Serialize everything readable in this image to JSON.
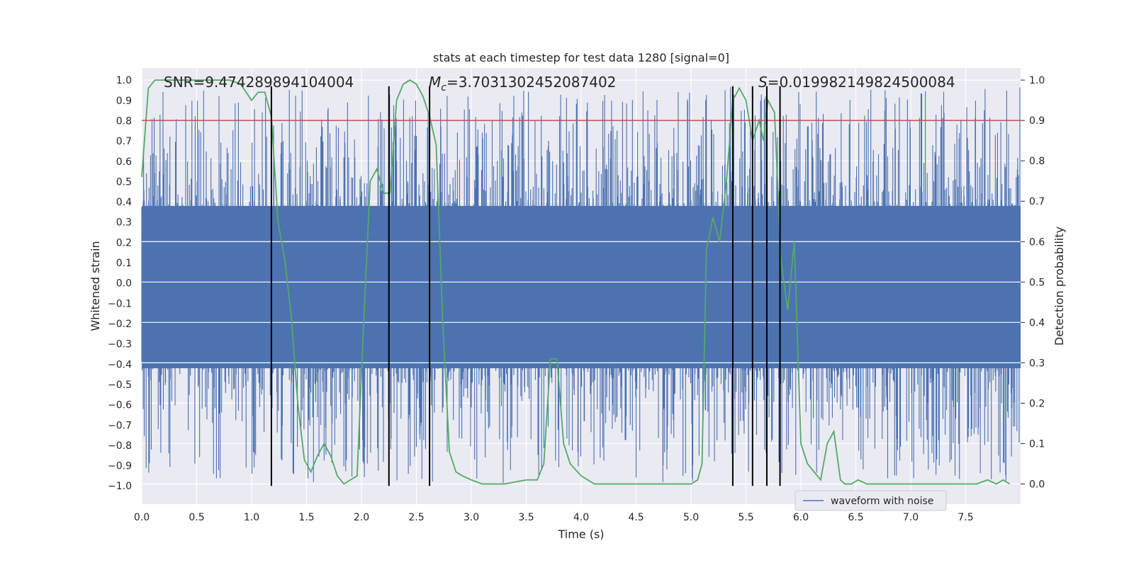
{
  "chart_data": {
    "type": "line",
    "title": "stats at each timestep for test data 1280 [signal=0]",
    "xlabel": "Time (s)",
    "ylabel_left": "Whitened strain",
    "ylabel_right": "Detection probability",
    "xlim": [
      0.0,
      8.0
    ],
    "ylim_left": [
      -1.09,
      1.06
    ],
    "ylim_right": [
      -0.05,
      1.03
    ],
    "x_ticks": [
      "0.0",
      "0.5",
      "1.0",
      "1.5",
      "2.0",
      "2.5",
      "3.0",
      "3.5",
      "4.0",
      "4.5",
      "5.0",
      "5.5",
      "6.0",
      "6.5",
      "7.0",
      "7.5"
    ],
    "y_ticks_left": [
      "1.0",
      "0.9",
      "0.8",
      "0.7",
      "0.6",
      "0.5",
      "0.4",
      "0.3",
      "0.2",
      "0.1",
      "0.0",
      "-0.1",
      "-0.2",
      "-0.3",
      "-0.4",
      "-0.5",
      "-0.6",
      "-0.7",
      "-0.8",
      "-0.9",
      "-1.0"
    ],
    "y_ticks_right": [
      "1.0",
      "0.9",
      "0.8",
      "0.7",
      "0.6",
      "0.5",
      "0.4",
      "0.3",
      "0.2",
      "0.1",
      "0.0"
    ],
    "grid": true,
    "legend_position": "bottom-right",
    "annotations": {
      "snr": "SNR=9.474289894104004",
      "mc_symbol": "M",
      "mc_sub": "c",
      "mc_value": "=3.7031302452087402",
      "s_symbol": "S",
      "s_value": "=0.019982149824500084"
    },
    "series": [
      {
        "name": "waveform with noise",
        "color": "#4c72b0",
        "axis": "left",
        "noise_envelope": {
          "dense_min": -0.42,
          "dense_max": 0.38,
          "spike_min": -1.0,
          "spike_max": 0.97
        }
      },
      {
        "color": "#55a868",
        "axis": "right",
        "x": [
          0.0,
          0.06,
          0.12,
          0.2,
          0.3,
          0.4,
          0.5,
          0.6,
          0.7,
          0.8,
          0.9,
          0.95,
          1.0,
          1.06,
          1.12,
          1.18,
          1.24,
          1.3,
          1.36,
          1.42,
          1.48,
          1.54,
          1.6,
          1.66,
          1.72,
          1.78,
          1.84,
          1.9,
          1.96,
          2.02,
          2.08,
          2.14,
          2.2,
          2.26,
          2.32,
          2.38,
          2.44,
          2.5,
          2.56,
          2.62,
          2.68,
          2.74,
          2.8,
          2.86,
          2.92,
          3.0,
          3.1,
          3.3,
          3.5,
          3.6,
          3.66,
          3.72,
          3.78,
          3.84,
          3.9,
          4.0,
          4.06,
          4.12,
          4.2,
          4.4,
          4.6,
          4.8,
          5.0,
          5.06,
          5.1,
          5.14,
          5.2,
          5.26,
          5.32,
          5.38,
          5.44,
          5.5,
          5.56,
          5.62,
          5.66,
          5.7,
          5.76,
          5.82,
          5.88,
          5.94,
          6.0,
          6.06,
          6.12,
          6.18,
          6.24,
          6.3,
          6.36,
          6.4,
          6.46,
          6.52,
          6.6,
          6.7,
          6.9,
          7.1,
          7.3,
          7.5,
          7.6,
          7.7,
          7.78,
          7.84,
          7.9
        ],
        "values": [
          0.76,
          0.98,
          1.0,
          1.0,
          1.0,
          1.0,
          1.0,
          1.0,
          1.0,
          1.0,
          0.99,
          0.97,
          0.95,
          0.97,
          0.97,
          0.91,
          0.65,
          0.56,
          0.42,
          0.2,
          0.06,
          0.03,
          0.07,
          0.1,
          0.07,
          0.02,
          0.0,
          0.01,
          0.02,
          0.4,
          0.75,
          0.78,
          0.72,
          0.72,
          0.95,
          0.99,
          1.0,
          0.99,
          0.96,
          0.91,
          0.84,
          0.4,
          0.08,
          0.03,
          0.02,
          0.01,
          0.0,
          0.0,
          0.01,
          0.01,
          0.05,
          0.31,
          0.31,
          0.1,
          0.05,
          0.02,
          0.01,
          0.0,
          0.0,
          0.0,
          0.0,
          0.0,
          0.0,
          0.01,
          0.05,
          0.58,
          0.66,
          0.6,
          0.74,
          0.95,
          0.98,
          0.95,
          0.85,
          0.9,
          0.85,
          0.95,
          0.92,
          0.55,
          0.43,
          0.6,
          0.1,
          0.05,
          0.03,
          0.01,
          0.1,
          0.13,
          0.01,
          0.0,
          0.0,
          0.01,
          0.0,
          0.0,
          0.0,
          0.0,
          0.0,
          0.0,
          0.0,
          0.01,
          0.0,
          0.01,
          0.0
        ]
      },
      {
        "color": "#c44e52",
        "axis": "right",
        "constant": 0.9
      }
    ],
    "vertical_lines": {
      "color": "#000000",
      "x": [
        1.18,
        2.25,
        2.62,
        5.38,
        5.56,
        5.69,
        5.81
      ],
      "y_top": 0.97,
      "y_bottom": -1.0
    }
  }
}
